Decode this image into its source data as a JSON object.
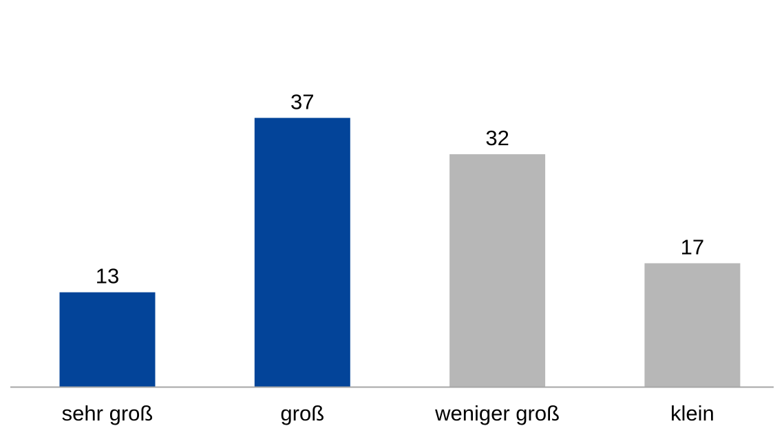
{
  "chart_data": {
    "type": "bar",
    "title": "",
    "xlabel": "",
    "ylabel": "",
    "categories": [
      "sehr groß",
      "groß",
      "weniger groß",
      "klein"
    ],
    "values": [
      13,
      37,
      32,
      17
    ],
    "data_labels": [
      "13",
      "37",
      "32",
      "17"
    ],
    "colors": [
      "#034499",
      "#034499",
      "#b7b7b7",
      "#b7b7b7"
    ],
    "ylim": [
      0,
      50
    ],
    "grid": false,
    "legend": "none",
    "axis_color": "#a6a6a6"
  }
}
